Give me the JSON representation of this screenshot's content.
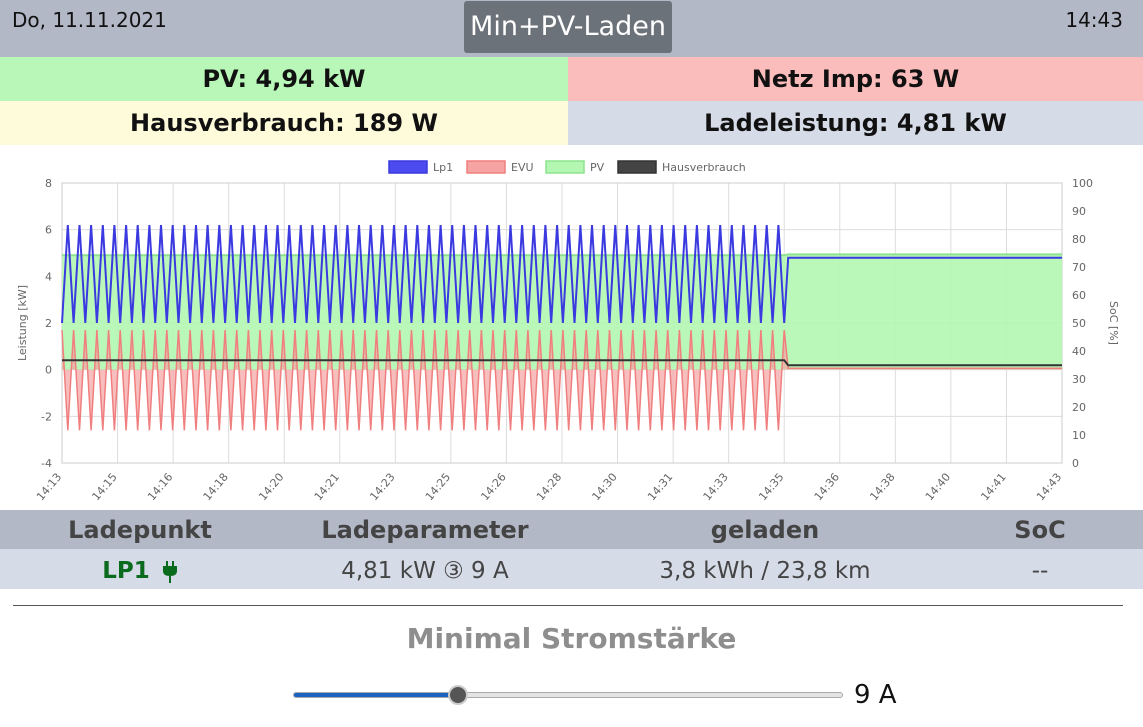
{
  "header": {
    "date": "Do, 11.11.2021",
    "mode": "Min+PV-Laden",
    "time": "14:43"
  },
  "stats": {
    "pv": "PV: 4,94 kW",
    "grid": "Netz Imp: 63 W",
    "house": "Hausverbrauch: 189 W",
    "charge": "Ladeleistung: 4,81 kW"
  },
  "colors": {
    "pv_bg": "#b9f7b9",
    "grid_bg": "#fbbcbc",
    "house_bg": "#fefbdb",
    "charge_bg": "#d6dbe8",
    "lp_color": "#0b6b1c",
    "slider_accent": "#1a63c2"
  },
  "chart_data": {
    "type": "area",
    "legend": [
      "Lp1",
      "EVU",
      "PV",
      "Hausverbrauch"
    ],
    "legend_placement": "top",
    "series_colors": {
      "Lp1": "#3a3ae0",
      "EVU": "#f07f7f",
      "PV": "#8de38d",
      "Hausverbrauch": "#333333"
    },
    "ylabel_left": "Leistung [kW]",
    "ylabel_right": "SoC [%]",
    "ylim_left": [
      -4,
      8
    ],
    "ylim_right": [
      0,
      100
    ],
    "yticks_left": [
      "8",
      "6",
      "4",
      "2",
      "0",
      "-2",
      "-4"
    ],
    "yticks_right": [
      "100",
      "90",
      "80",
      "70",
      "60",
      "50",
      "40",
      "30",
      "20",
      "10",
      "0"
    ],
    "xticks": [
      "14:13",
      "14:15",
      "14:16",
      "14:18",
      "14:20",
      "14:21",
      "14:23",
      "14:25",
      "14:26",
      "14:28",
      "14:30",
      "14:31",
      "14:33",
      "14:35",
      "14:36",
      "14:38",
      "14:40",
      "14:41",
      "14:43"
    ],
    "grid": true,
    "oscillation_phase": {
      "x_range": [
        "14:13",
        "14:35"
      ],
      "lp1_range_kw": [
        2.0,
        6.2
      ],
      "evu_range_kw": [
        -2.6,
        1.7
      ],
      "pv_kw": 4.9,
      "hausverbrauch_kw": 0.4
    },
    "steady_phase": {
      "x_range": [
        "14:35",
        "14:43"
      ],
      "lp1_kw": 4.8,
      "evu_kw": 0.06,
      "pv_kw": 4.94,
      "hausverbrauch_kw": 0.19
    }
  },
  "table": {
    "headers": [
      "Ladepunkt",
      "Ladeparameter",
      "geladen",
      "SoC"
    ],
    "row": {
      "ladepunkt": "LP1",
      "plug_icon": "plug-icon",
      "ladeparameter": "4,81 kW ③ 9 A",
      "geladen": "3,8 kWh / 23,8 km",
      "soc": "--"
    }
  },
  "control": {
    "label": "Minimal Stromstärke",
    "slider_fraction": 0.3,
    "value": "9 A"
  }
}
